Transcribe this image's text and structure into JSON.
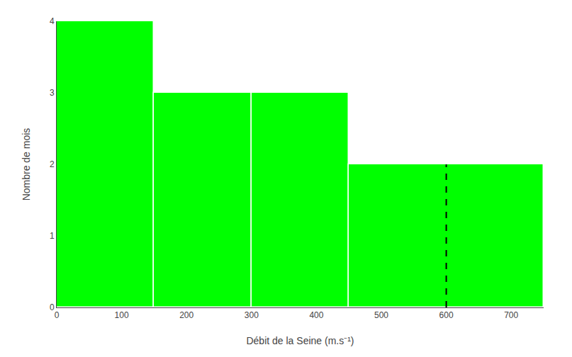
{
  "chart_data": {
    "type": "histogram",
    "xlabel": "Débit de la Seine (m.s⁻¹)",
    "ylabel": "Nombre de mois",
    "bins": [
      0,
      150,
      300,
      450,
      750
    ],
    "series": [
      {
        "type": "bar",
        "color": "#00FF00",
        "values": [
          4,
          3,
          3,
          2
        ]
      },
      {
        "type": "line",
        "color": "#000000",
        "line_style": "dashed",
        "x": [
          600,
          600
        ],
        "values": [
          0,
          2
        ]
      }
    ],
    "xlim": [
      0,
      750
    ],
    "ylim": [
      0,
      4
    ],
    "xticks": [
      0,
      100,
      200,
      300,
      400,
      500,
      600,
      700
    ],
    "yticks": [
      0,
      1,
      2,
      3,
      4
    ],
    "grid": false
  }
}
